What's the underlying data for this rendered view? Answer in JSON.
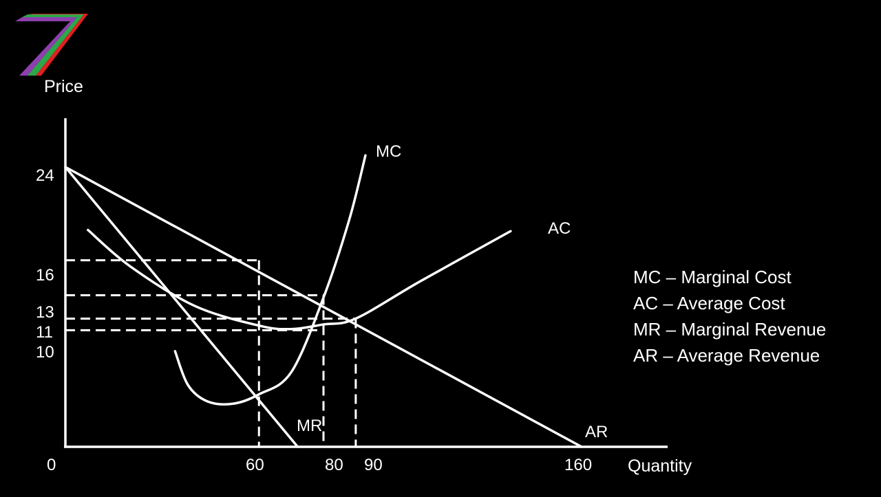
{
  "chart_data": {
    "type": "line",
    "title": "",
    "ylabel": "Price",
    "xlabel": "Quantity",
    "x_ticks": [
      0,
      60,
      80,
      90,
      160
    ],
    "y_ticks": [
      24,
      16,
      13,
      11,
      10
    ],
    "xlim": [
      0,
      180
    ],
    "ylim": [
      0,
      28
    ],
    "series": [
      {
        "name": "AR",
        "label": "AR",
        "points": [
          [
            0,
            24
          ],
          [
            160,
            0
          ]
        ]
      },
      {
        "name": "MR",
        "label": "MR",
        "points": [
          [
            0,
            24
          ],
          [
            72,
            0
          ]
        ]
      },
      {
        "name": "MC",
        "label": "MC",
        "points": [
          [
            34,
            8.2
          ],
          [
            38,
            5.3
          ],
          [
            44,
            3.9
          ],
          [
            52,
            3.7
          ],
          [
            60,
            4.5
          ],
          [
            70,
            6.4
          ],
          [
            80,
            12.8
          ],
          [
            88,
            19.5
          ],
          [
            93,
            25.0
          ]
        ]
      },
      {
        "name": "AC",
        "label": "AC",
        "points": [
          [
            7,
            18.6
          ],
          [
            20,
            15.5
          ],
          [
            40,
            12.1
          ],
          [
            60,
            10.4
          ],
          [
            70,
            10.1
          ],
          [
            80,
            10.5
          ],
          [
            90,
            11.0
          ],
          [
            110,
            14.2
          ],
          [
            138,
            18.5
          ]
        ]
      }
    ],
    "guides": [
      {
        "label": "p16",
        "from": [
          0,
          16
        ],
        "to": [
          60,
          16
        ]
      },
      {
        "label": "q60",
        "from": [
          60,
          16
        ],
        "to": [
          60,
          0
        ]
      },
      {
        "label": "p13",
        "from": [
          0,
          13
        ],
        "to": [
          80,
          13
        ]
      },
      {
        "label": "q80",
        "from": [
          80,
          13
        ],
        "to": [
          80,
          0
        ]
      },
      {
        "label": "p11",
        "from": [
          0,
          11
        ],
        "to": [
          90,
          11
        ]
      },
      {
        "label": "q90",
        "from": [
          90,
          11
        ],
        "to": [
          90,
          0
        ]
      },
      {
        "label": "p10",
        "from": [
          0,
          10
        ],
        "to": [
          80,
          10
        ]
      }
    ],
    "legend": {
      "position": "right",
      "items": [
        "MC – Marginal Cost",
        "AC – Average Cost",
        "MR – Marginal Revenue",
        "AR – Average Revenue"
      ]
    },
    "grid": false
  },
  "logo": {
    "name": "stripe-seven-logo",
    "colors": [
      "#8e3fae",
      "#2aa84a",
      "#e02020"
    ]
  }
}
